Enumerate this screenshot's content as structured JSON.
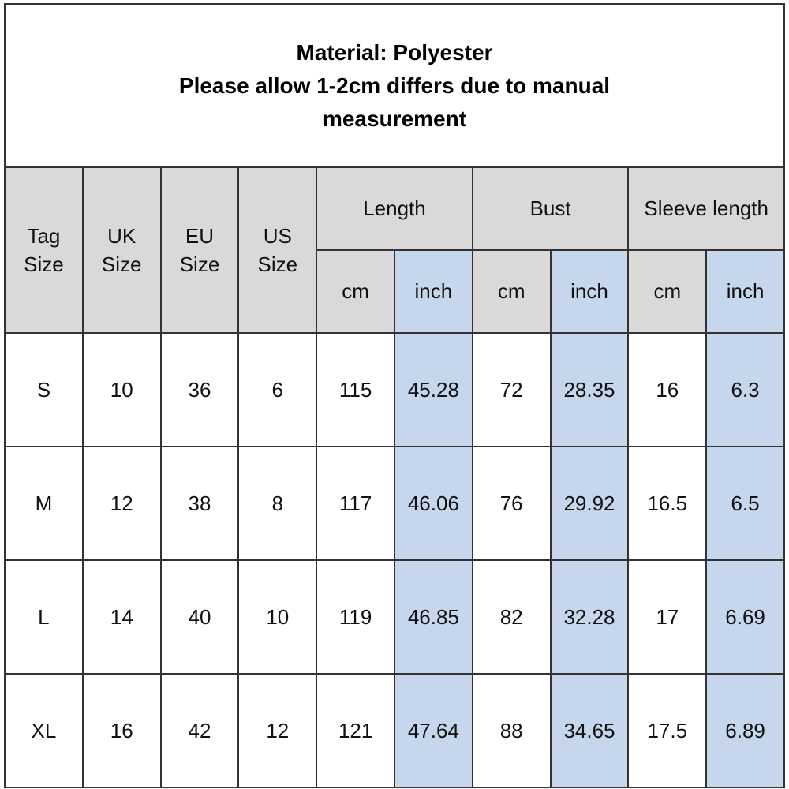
{
  "header": {
    "title": "Material: Polyester",
    "note": "Please allow 1-2cm differs due to manual measurement"
  },
  "table": {
    "size_headers": [
      "Tag Size",
      "UK Size",
      "EU Size",
      "US Size"
    ],
    "groups": [
      "Length",
      "Bust",
      "Sleeve length"
    ],
    "units": [
      "cm",
      "inch",
      "cm",
      "inch",
      "cm",
      "inch"
    ],
    "rows": [
      [
        "S",
        10,
        36,
        6,
        115,
        45.28,
        72,
        28.35,
        16,
        6.3
      ],
      [
        "M",
        12,
        38,
        8,
        117,
        46.06,
        76,
        29.92,
        16.5,
        6.5
      ],
      [
        "L",
        14,
        40,
        10,
        119,
        46.85,
        82,
        32.28,
        17,
        6.69
      ],
      [
        "XL",
        16,
        42,
        12,
        121,
        47.64,
        88,
        34.65,
        17.5,
        6.89
      ]
    ]
  }
}
